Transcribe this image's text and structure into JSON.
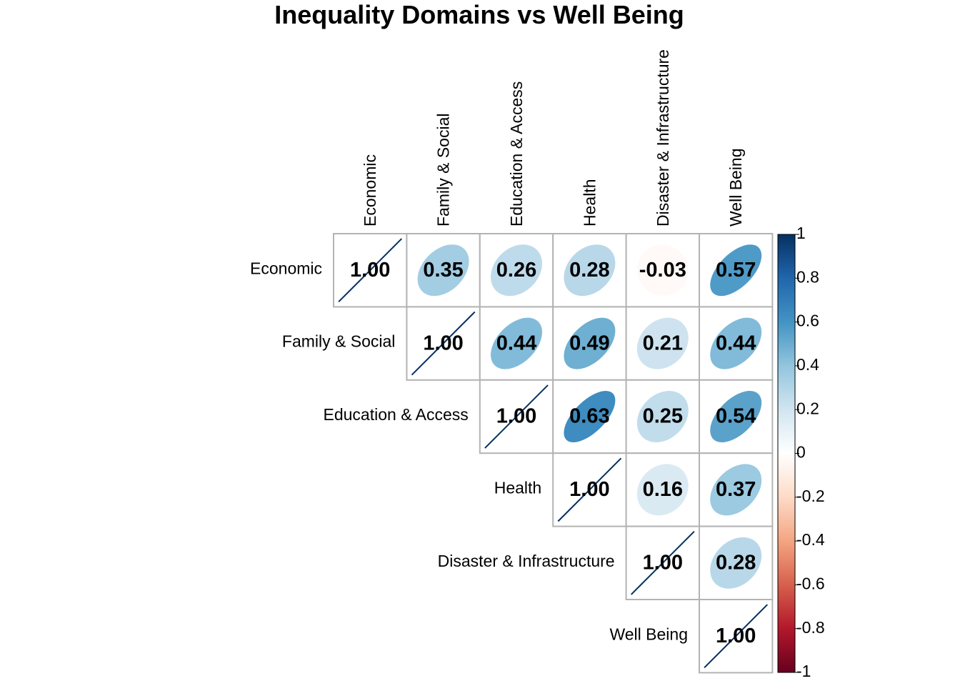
{
  "chart_data": {
    "type": "heatmap",
    "subtype": "correlation-matrix-upper-ellipse",
    "title": "Inequality Domains vs Well Being",
    "variables": [
      "Economic",
      "Family & Social",
      "Education & Access",
      "Health",
      "Disaster & Infrastructure",
      "Well Being"
    ],
    "matrix": [
      [
        1.0,
        0.35,
        0.26,
        0.28,
        -0.03,
        0.57
      ],
      [
        0.35,
        1.0,
        0.44,
        0.49,
        0.21,
        0.44
      ],
      [
        0.26,
        0.44,
        1.0,
        0.63,
        0.25,
        0.54
      ],
      [
        0.28,
        0.49,
        0.63,
        1.0,
        0.16,
        0.37
      ],
      [
        -0.03,
        0.21,
        0.25,
        0.16,
        1.0,
        0.28
      ],
      [
        0.57,
        0.44,
        0.54,
        0.37,
        0.28,
        1.0
      ]
    ],
    "cell_labels": [
      [
        "1.00",
        "0.35",
        "0.26",
        "0.28",
        "-0.03",
        "0.57"
      ],
      [
        "1.00",
        "0.44",
        "0.49",
        "0.21",
        "0.44"
      ],
      [
        "1.00",
        "0.63",
        "0.25",
        "0.54"
      ],
      [
        "1.00",
        "0.16",
        "0.37"
      ],
      [
        "1.00",
        "0.28"
      ],
      [
        "1.00"
      ]
    ],
    "show": "upper",
    "colorbar": {
      "range": [
        -1,
        1
      ],
      "ticks": [
        "1",
        "0.8",
        "0.6",
        "0.4",
        "0.2",
        "0",
        "-0.2",
        "-0.4",
        "-0.6",
        "-0.8",
        "-1"
      ],
      "colors": [
        "#67001F",
        "#B2182B",
        "#D6604D",
        "#F4A582",
        "#FDDBC7",
        "#FFFFFF",
        "#D1E5F0",
        "#92C5DE",
        "#4393C3",
        "#2166AC",
        "#053061"
      ]
    },
    "grid": true,
    "legend_position": "right"
  }
}
